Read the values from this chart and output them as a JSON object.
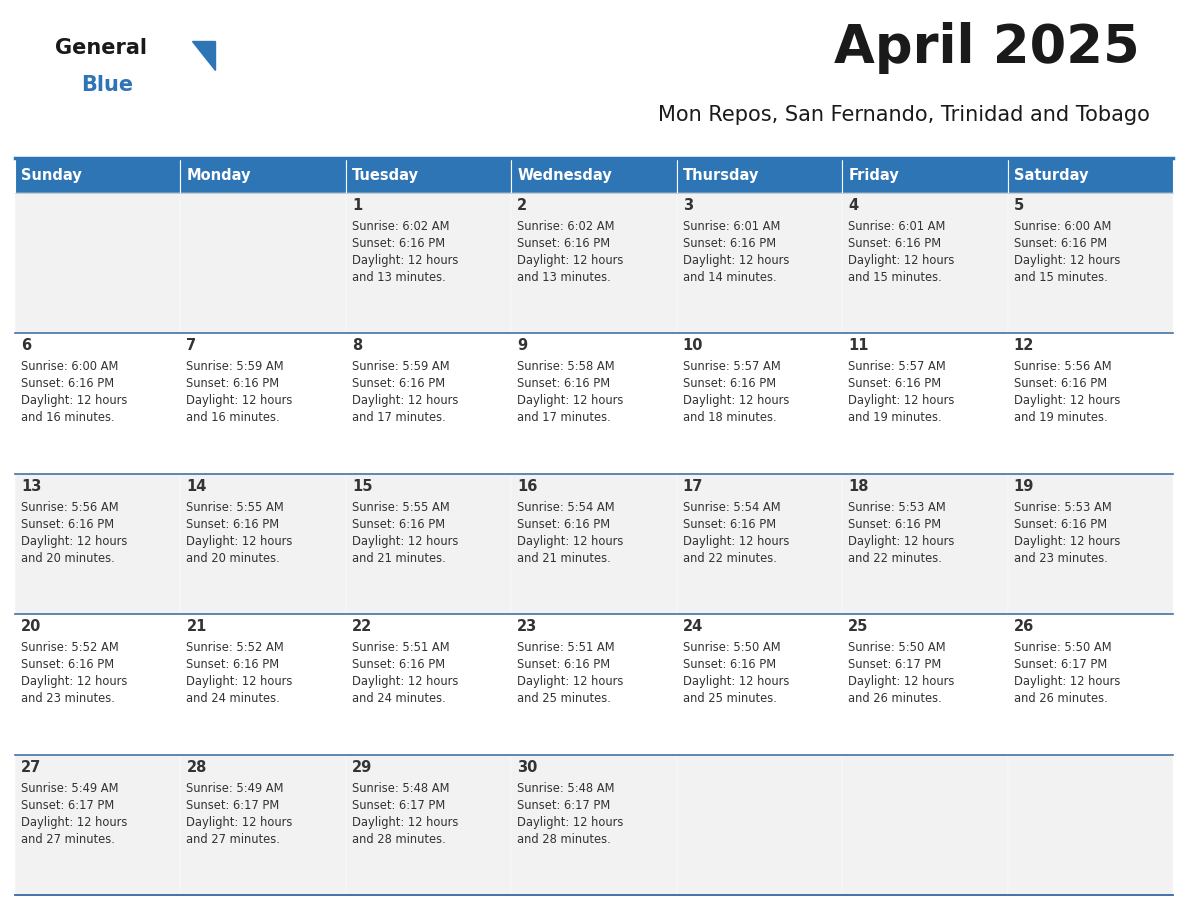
{
  "title": "April 2025",
  "subtitle": "Mon Repos, San Fernando, Trinidad and Tobago",
  "header_bg": "#2E75B6",
  "header_text_color": "#FFFFFF",
  "cell_bg_odd": "#F2F2F2",
  "cell_bg_even": "#FFFFFF",
  "text_color": "#333333",
  "day_headers": [
    "Sunday",
    "Monday",
    "Tuesday",
    "Wednesday",
    "Thursday",
    "Friday",
    "Saturday"
  ],
  "weeks": [
    [
      {
        "day": "",
        "sunrise": "",
        "sunset": "",
        "daylight": ""
      },
      {
        "day": "",
        "sunrise": "",
        "sunset": "",
        "daylight": ""
      },
      {
        "day": "1",
        "sunrise": "Sunrise: 6:02 AM",
        "sunset": "Sunset: 6:16 PM",
        "daylight": "Daylight: 12 hours\nand 13 minutes."
      },
      {
        "day": "2",
        "sunrise": "Sunrise: 6:02 AM",
        "sunset": "Sunset: 6:16 PM",
        "daylight": "Daylight: 12 hours\nand 13 minutes."
      },
      {
        "day": "3",
        "sunrise": "Sunrise: 6:01 AM",
        "sunset": "Sunset: 6:16 PM",
        "daylight": "Daylight: 12 hours\nand 14 minutes."
      },
      {
        "day": "4",
        "sunrise": "Sunrise: 6:01 AM",
        "sunset": "Sunset: 6:16 PM",
        "daylight": "Daylight: 12 hours\nand 15 minutes."
      },
      {
        "day": "5",
        "sunrise": "Sunrise: 6:00 AM",
        "sunset": "Sunset: 6:16 PM",
        "daylight": "Daylight: 12 hours\nand 15 minutes."
      }
    ],
    [
      {
        "day": "6",
        "sunrise": "Sunrise: 6:00 AM",
        "sunset": "Sunset: 6:16 PM",
        "daylight": "Daylight: 12 hours\nand 16 minutes."
      },
      {
        "day": "7",
        "sunrise": "Sunrise: 5:59 AM",
        "sunset": "Sunset: 6:16 PM",
        "daylight": "Daylight: 12 hours\nand 16 minutes."
      },
      {
        "day": "8",
        "sunrise": "Sunrise: 5:59 AM",
        "sunset": "Sunset: 6:16 PM",
        "daylight": "Daylight: 12 hours\nand 17 minutes."
      },
      {
        "day": "9",
        "sunrise": "Sunrise: 5:58 AM",
        "sunset": "Sunset: 6:16 PM",
        "daylight": "Daylight: 12 hours\nand 17 minutes."
      },
      {
        "day": "10",
        "sunrise": "Sunrise: 5:57 AM",
        "sunset": "Sunset: 6:16 PM",
        "daylight": "Daylight: 12 hours\nand 18 minutes."
      },
      {
        "day": "11",
        "sunrise": "Sunrise: 5:57 AM",
        "sunset": "Sunset: 6:16 PM",
        "daylight": "Daylight: 12 hours\nand 19 minutes."
      },
      {
        "day": "12",
        "sunrise": "Sunrise: 5:56 AM",
        "sunset": "Sunset: 6:16 PM",
        "daylight": "Daylight: 12 hours\nand 19 minutes."
      }
    ],
    [
      {
        "day": "13",
        "sunrise": "Sunrise: 5:56 AM",
        "sunset": "Sunset: 6:16 PM",
        "daylight": "Daylight: 12 hours\nand 20 minutes."
      },
      {
        "day": "14",
        "sunrise": "Sunrise: 5:55 AM",
        "sunset": "Sunset: 6:16 PM",
        "daylight": "Daylight: 12 hours\nand 20 minutes."
      },
      {
        "day": "15",
        "sunrise": "Sunrise: 5:55 AM",
        "sunset": "Sunset: 6:16 PM",
        "daylight": "Daylight: 12 hours\nand 21 minutes."
      },
      {
        "day": "16",
        "sunrise": "Sunrise: 5:54 AM",
        "sunset": "Sunset: 6:16 PM",
        "daylight": "Daylight: 12 hours\nand 21 minutes."
      },
      {
        "day": "17",
        "sunrise": "Sunrise: 5:54 AM",
        "sunset": "Sunset: 6:16 PM",
        "daylight": "Daylight: 12 hours\nand 22 minutes."
      },
      {
        "day": "18",
        "sunrise": "Sunrise: 5:53 AM",
        "sunset": "Sunset: 6:16 PM",
        "daylight": "Daylight: 12 hours\nand 22 minutes."
      },
      {
        "day": "19",
        "sunrise": "Sunrise: 5:53 AM",
        "sunset": "Sunset: 6:16 PM",
        "daylight": "Daylight: 12 hours\nand 23 minutes."
      }
    ],
    [
      {
        "day": "20",
        "sunrise": "Sunrise: 5:52 AM",
        "sunset": "Sunset: 6:16 PM",
        "daylight": "Daylight: 12 hours\nand 23 minutes."
      },
      {
        "day": "21",
        "sunrise": "Sunrise: 5:52 AM",
        "sunset": "Sunset: 6:16 PM",
        "daylight": "Daylight: 12 hours\nand 24 minutes."
      },
      {
        "day": "22",
        "sunrise": "Sunrise: 5:51 AM",
        "sunset": "Sunset: 6:16 PM",
        "daylight": "Daylight: 12 hours\nand 24 minutes."
      },
      {
        "day": "23",
        "sunrise": "Sunrise: 5:51 AM",
        "sunset": "Sunset: 6:16 PM",
        "daylight": "Daylight: 12 hours\nand 25 minutes."
      },
      {
        "day": "24",
        "sunrise": "Sunrise: 5:50 AM",
        "sunset": "Sunset: 6:16 PM",
        "daylight": "Daylight: 12 hours\nand 25 minutes."
      },
      {
        "day": "25",
        "sunrise": "Sunrise: 5:50 AM",
        "sunset": "Sunset: 6:17 PM",
        "daylight": "Daylight: 12 hours\nand 26 minutes."
      },
      {
        "day": "26",
        "sunrise": "Sunrise: 5:50 AM",
        "sunset": "Sunset: 6:17 PM",
        "daylight": "Daylight: 12 hours\nand 26 minutes."
      }
    ],
    [
      {
        "day": "27",
        "sunrise": "Sunrise: 5:49 AM",
        "sunset": "Sunset: 6:17 PM",
        "daylight": "Daylight: 12 hours\nand 27 minutes."
      },
      {
        "day": "28",
        "sunrise": "Sunrise: 5:49 AM",
        "sunset": "Sunset: 6:17 PM",
        "daylight": "Daylight: 12 hours\nand 27 minutes."
      },
      {
        "day": "29",
        "sunrise": "Sunrise: 5:48 AM",
        "sunset": "Sunset: 6:17 PM",
        "daylight": "Daylight: 12 hours\nand 28 minutes."
      },
      {
        "day": "30",
        "sunrise": "Sunrise: 5:48 AM",
        "sunset": "Sunset: 6:17 PM",
        "daylight": "Daylight: 12 hours\nand 28 minutes."
      },
      {
        "day": "",
        "sunrise": "",
        "sunset": "",
        "daylight": ""
      },
      {
        "day": "",
        "sunrise": "",
        "sunset": "",
        "daylight": ""
      },
      {
        "day": "",
        "sunrise": "",
        "sunset": "",
        "daylight": ""
      }
    ]
  ],
  "logo_general_color": "#1a1a1a",
  "logo_blue_color": "#2E75B6",
  "title_color": "#1a1a1a",
  "subtitle_color": "#1a1a1a"
}
